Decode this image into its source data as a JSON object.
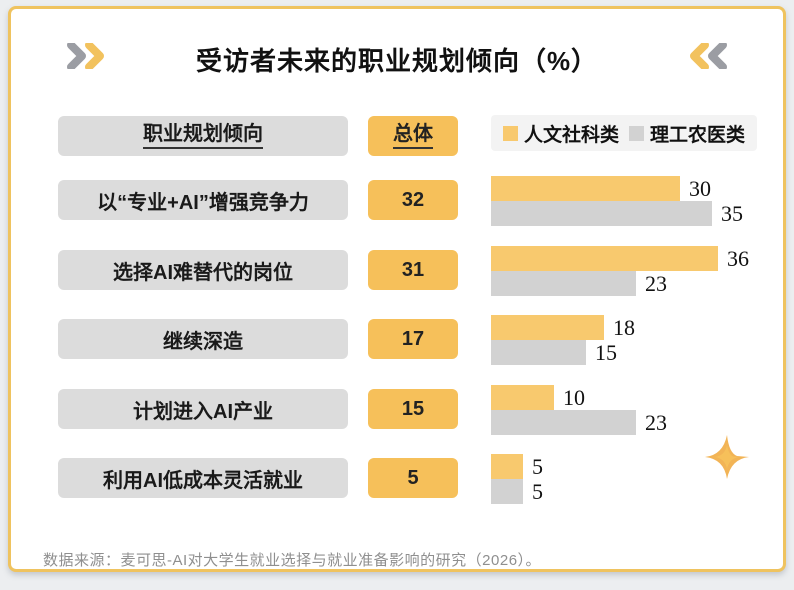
{
  "page": {
    "title": "受访者未来的职业规划倾向（%）",
    "source_note": "数据来源：麦可思-AI对大学生就业选择与就业准备影响的研究（2026）。"
  },
  "table": {
    "header_category": "职业规划倾向",
    "header_total": "总体"
  },
  "legend": {
    "items": [
      {
        "label": "人文社科类",
        "swatch_color": "#F8C96E"
      },
      {
        "label": "理工农医类",
        "swatch_color": "#CFCFCF"
      }
    ]
  },
  "colors": {
    "accent-yellow": "#F6C05A",
    "bar-yellow": "#F8C96E",
    "box-gray": "#DCDCDC",
    "bar-gray": "#D2D2D2",
    "border-gold": "#EFC35F"
  },
  "chart_data": {
    "type": "bar",
    "orientation": "horizontal",
    "title": "受访者未来的职业规划倾向（%）",
    "unit": "%",
    "xlim": [
      0,
      40
    ],
    "grid": false,
    "legend_position": "top-right",
    "categories": [
      "以“专业+AI”增强竞争力",
      "选择AI难替代的岗位",
      "继续深造",
      "计划进入AI产业",
      "利用AI低成本灵活就业"
    ],
    "totals": [
      32,
      31,
      17,
      15,
      5
    ],
    "series": [
      {
        "name": "人文社科类",
        "color": "#F8C96E",
        "values": [
          30,
          36,
          18,
          10,
          5
        ]
      },
      {
        "name": "理工农医类",
        "color": "#D2D2D2",
        "values": [
          35,
          23,
          15,
          23,
          5
        ]
      }
    ]
  }
}
